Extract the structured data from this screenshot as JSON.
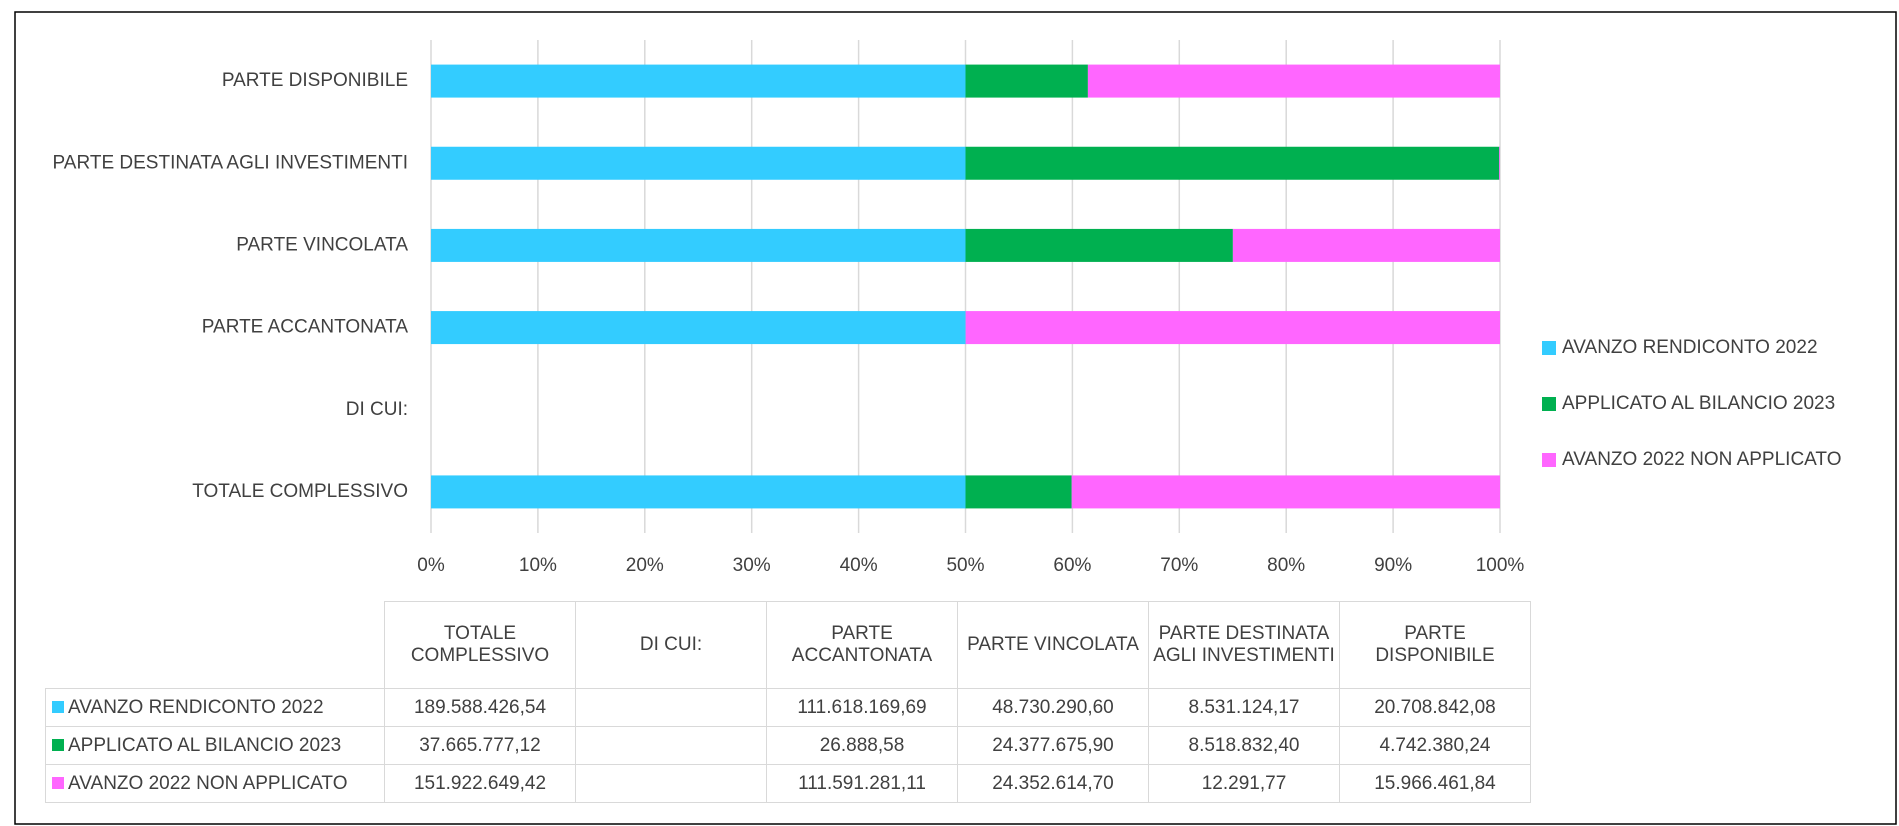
{
  "chart_data": {
    "type": "bar",
    "orientation": "horizontal",
    "stacking": "percent",
    "categories": [
      "TOTALE COMPLESSIVO",
      "DI CUI:",
      "PARTE ACCANTONATA",
      "PARTE VINCOLATA",
      "PARTE DESTINATA AGLI INVESTIMENTI",
      "PARTE DISPONIBILE"
    ],
    "series": [
      {
        "name": "AVANZO RENDICONTO 2022",
        "color": "#33ccff",
        "values": [
          189588426.54,
          null,
          111618169.69,
          48730290.6,
          8531124.17,
          20708842.08
        ],
        "value_labels": [
          "189.588.426,54",
          null,
          "111.618.169,69",
          "48.730.290,60",
          "8.531.124,17",
          "20.708.842,08"
        ]
      },
      {
        "name": "APPLICATO AL BILANCIO 2023",
        "color": "#00b050",
        "values": [
          37665777.12,
          null,
          26888.58,
          24377675.9,
          8518832.4,
          4742380.24
        ],
        "value_labels": [
          "37.665.777,12",
          null,
          "26.888,58",
          "24.377.675,90",
          "8.518.832,40",
          "4.742.380,24"
        ]
      },
      {
        "name": "AVANZO 2022 NON APPLICATO",
        "color": "#ff66ff",
        "values": [
          151922649.42,
          null,
          111591281.11,
          24352614.7,
          12291.77,
          15966461.84
        ],
        "value_labels": [
          "151.922.649,42",
          null,
          "111.591.281,11",
          "24.352.614,70",
          "12.291,77",
          "15.966.461,84"
        ]
      }
    ],
    "xlim": [
      0,
      100
    ],
    "xticks": [
      {
        "value": 0,
        "label": "0%"
      },
      {
        "value": 10,
        "label": "10%"
      },
      {
        "value": 20,
        "label": "20%"
      },
      {
        "value": 30,
        "label": "30%"
      },
      {
        "value": 40,
        "label": "40%"
      },
      {
        "value": 50,
        "label": "50%"
      },
      {
        "value": 60,
        "label": "60%"
      },
      {
        "value": 70,
        "label": "70%"
      },
      {
        "value": 80,
        "label": "80%"
      },
      {
        "value": 90,
        "label": "90%"
      },
      {
        "value": 100,
        "label": "100%"
      }
    ],
    "grid": true,
    "legend": "right",
    "data_table": true
  }
}
